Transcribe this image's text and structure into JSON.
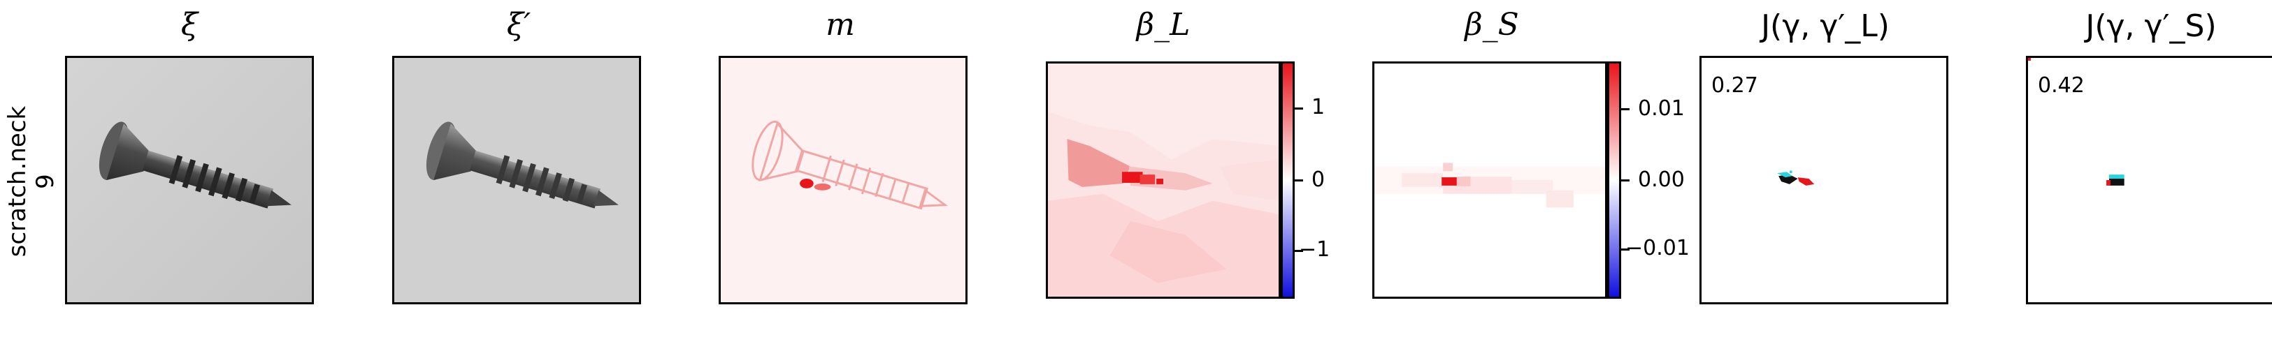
{
  "row": {
    "label_line1": "scratch.neck",
    "label_line2": "9"
  },
  "panels": {
    "xi": {
      "title": "ξ"
    },
    "xi_prime": {
      "title": "ξ′"
    },
    "m": {
      "title": "m"
    },
    "beta_L": {
      "title": "β_L",
      "colorbar_ticks": [
        "1",
        "0",
        "−1"
      ]
    },
    "beta_S": {
      "title": "β_S",
      "colorbar_ticks": [
        "0.01",
        "0.00",
        "−0.01"
      ]
    },
    "j_L": {
      "title": "J(γ, γ′_L)",
      "score": "0.27"
    },
    "j_S": {
      "title": "J(γ, γ′_S)",
      "score": "0.42"
    }
  },
  "colors": {
    "positive": "#e8141a",
    "negative": "#1010e0",
    "neutral": "#ffffff",
    "mask_cyan": "#29d3e0"
  }
}
